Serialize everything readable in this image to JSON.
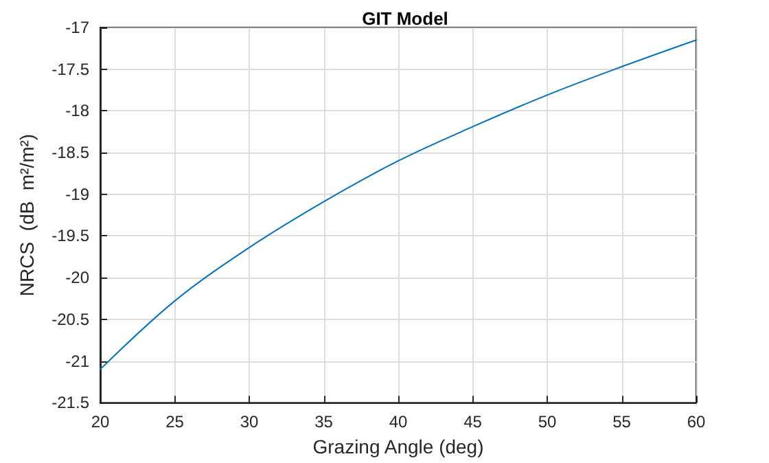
{
  "chart_data": {
    "type": "line",
    "title": "GIT Model",
    "xlabel": "Grazing Angle (deg)",
    "ylabel": "NRCS  (dB  m²/m²)",
    "x": [
      20,
      25,
      30,
      35,
      40,
      45,
      50,
      55,
      60
    ],
    "series": [
      {
        "color": "#0072bd",
        "values": [
          -21.1,
          -20.28,
          -19.64,
          -19.09,
          -18.6,
          -18.19,
          -17.81,
          -17.47,
          -17.15
        ]
      }
    ],
    "xlim": [
      20,
      60
    ],
    "xticks": [
      20,
      25,
      30,
      35,
      40,
      45,
      50,
      55,
      60
    ],
    "ylim": [
      -21.5,
      -17
    ],
    "yticks": [
      -21.5,
      -21,
      -20.5,
      -20,
      -19.5,
      -19,
      -18.5,
      -18,
      -17.5,
      -17
    ],
    "grid": true,
    "marker": "none",
    "line_style": "solid"
  }
}
